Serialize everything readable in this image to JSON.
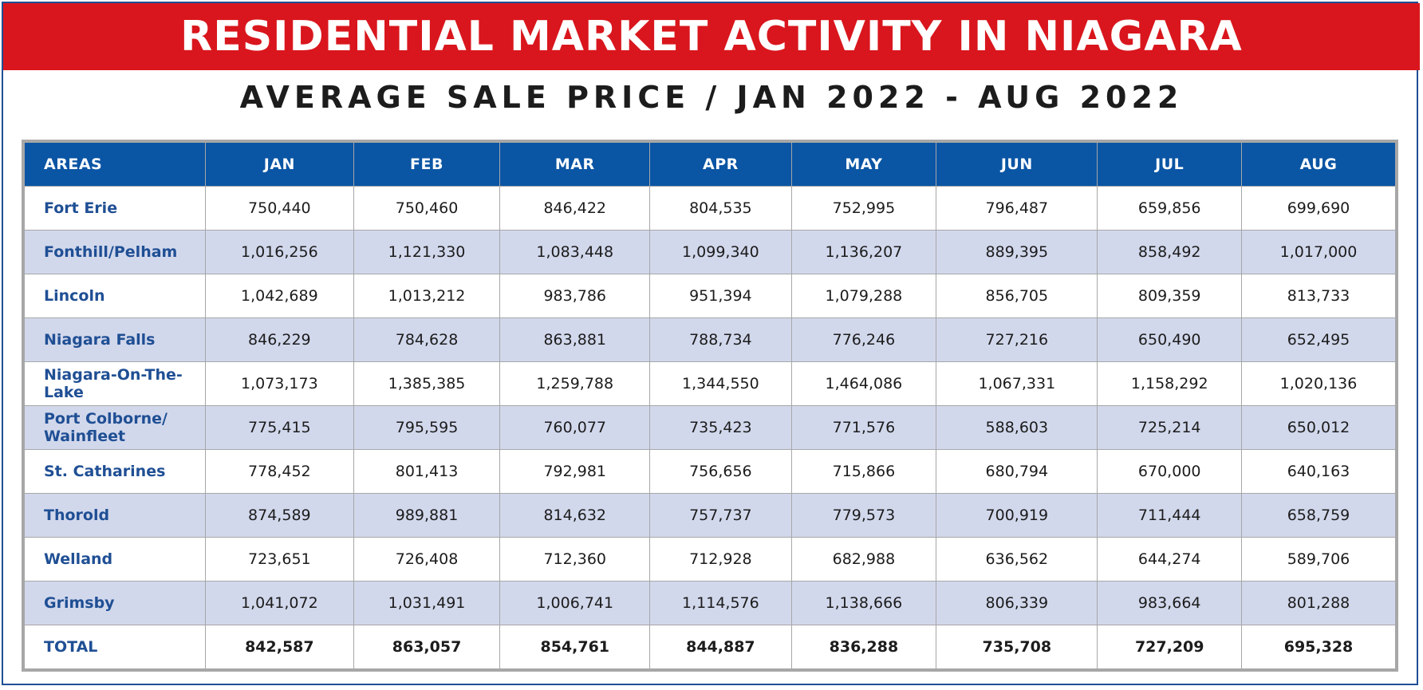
{
  "header": {
    "title": "RESIDENTIAL MARKET ACTIVITY IN NIAGARA",
    "subtitle": "AVERAGE SALE PRICE / JAN 2022 - AUG 2022"
  },
  "colors": {
    "banner": "#d9161d",
    "table_header": "#0a55a4",
    "area_text": "#1f4f94",
    "row_stripe": "#d2d8ec"
  },
  "table": {
    "columns": [
      "AREAS",
      "JAN",
      "FEB",
      "MAR",
      "APR",
      "MAY",
      "JUN",
      "JUL",
      "AUG"
    ],
    "rows": [
      {
        "area": "Fort Erie",
        "values": [
          "750,440",
          "750,460",
          "846,422",
          "804,535",
          "752,995",
          "796,487",
          "659,856",
          "699,690"
        ]
      },
      {
        "area": "Fonthill/Pelham",
        "values": [
          "1,016,256",
          "1,121,330",
          "1,083,448",
          "1,099,340",
          "1,136,207",
          "889,395",
          "858,492",
          "1,017,000"
        ]
      },
      {
        "area": "Lincoln",
        "values": [
          "1,042,689",
          "1,013,212",
          "983,786",
          "951,394",
          "1,079,288",
          "856,705",
          "809,359",
          "813,733"
        ]
      },
      {
        "area": "Niagara Falls",
        "values": [
          "846,229",
          "784,628",
          "863,881",
          "788,734",
          "776,246",
          "727,216",
          "650,490",
          "652,495"
        ]
      },
      {
        "area": "Niagara-On-The-Lake",
        "values": [
          "1,073,173",
          "1,385,385",
          "1,259,788",
          "1,344,550",
          "1,464,086",
          "1,067,331",
          "1,158,292",
          "1,020,136"
        ]
      },
      {
        "area": "Port Colborne/ Wainfleet",
        "values": [
          "775,415",
          "795,595",
          "760,077",
          "735,423",
          "771,576",
          "588,603",
          "725,214",
          "650,012"
        ]
      },
      {
        "area": "St. Catharines",
        "values": [
          "778,452",
          "801,413",
          "792,981",
          "756,656",
          "715,866",
          "680,794",
          "670,000",
          "640,163"
        ]
      },
      {
        "area": "Thorold",
        "values": [
          "874,589",
          "989,881",
          "814,632",
          "757,737",
          "779,573",
          "700,919",
          "711,444",
          "658,759"
        ]
      },
      {
        "area": "Welland",
        "values": [
          "723,651",
          "726,408",
          "712,360",
          "712,928",
          "682,988",
          "636,562",
          "644,274",
          "589,706"
        ]
      },
      {
        "area": "Grimsby",
        "values": [
          "1,041,072",
          "1,031,491",
          "1,006,741",
          "1,114,576",
          "1,138,666",
          "806,339",
          "983,664",
          "801,288"
        ]
      }
    ],
    "total": {
      "area": "TOTAL",
      "values": [
        "842,587",
        "863,057",
        "854,761",
        "844,887",
        "836,288",
        "735,708",
        "727,209",
        "695,328"
      ]
    }
  }
}
